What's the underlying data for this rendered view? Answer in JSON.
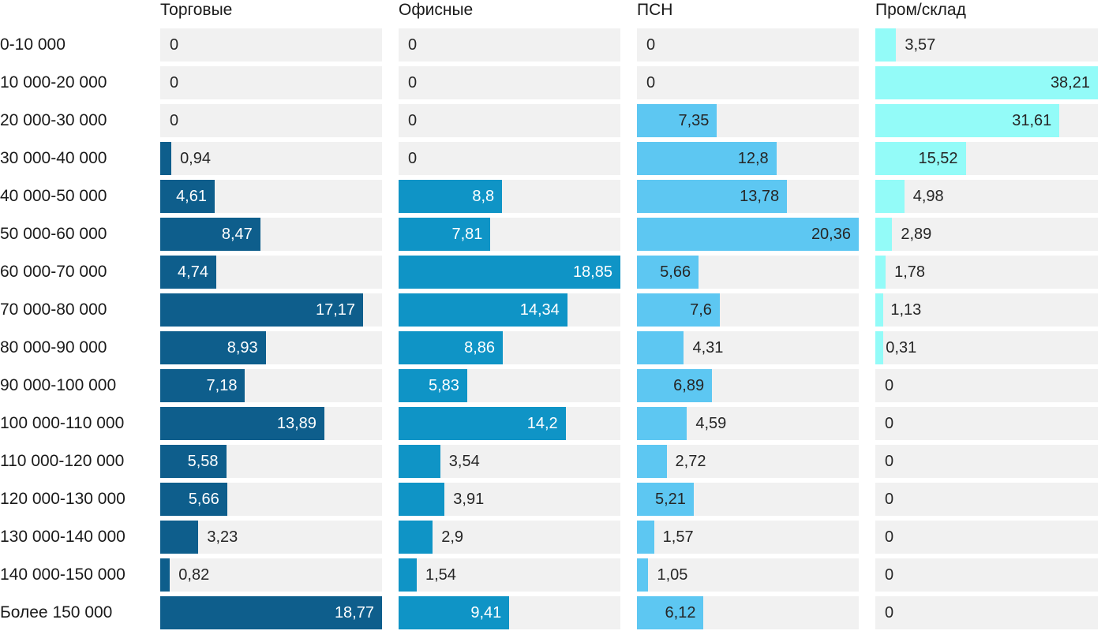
{
  "chart_data": {
    "type": "bar",
    "orientation": "horizontal",
    "scaling": "each series normalized to its own max value",
    "grid": false,
    "value_decimal_separator": ",",
    "track_color": "#f1f1f1",
    "label_text_color": "#1a1a1a",
    "outside_value_text_color": "#262626",
    "categories": [
      "0-10 000",
      "10 000-20 000",
      "20 000-30 000",
      "30 000-40 000",
      "40 000-50 000",
      "50 000-60 000",
      "60 000-70 000",
      "70 000-80 000",
      "80 000-90 000",
      "90 000-100 000",
      "100 000-110 000",
      "110 000-120 000",
      "120 000-130 000",
      "130 000-140 000",
      "140 000-150 000",
      "Более 150 000"
    ],
    "series": [
      {
        "name": "Торговые",
        "color": "#0e5e8c",
        "inside_text_color": "#ffffff",
        "values": [
          0,
          0,
          0,
          0.94,
          4.61,
          8.47,
          4.74,
          17.17,
          8.93,
          7.18,
          13.89,
          5.58,
          5.66,
          3.23,
          0.82,
          18.77
        ]
      },
      {
        "name": "Офисные",
        "color": "#0f94c6",
        "inside_text_color": "#ffffff",
        "values": [
          0,
          0,
          0,
          0,
          8.8,
          7.81,
          18.85,
          14.34,
          8.86,
          5.83,
          14.2,
          3.54,
          3.91,
          2.9,
          1.54,
          9.41
        ]
      },
      {
        "name": "ПСН",
        "color": "#5dc7f2",
        "inside_text_color": "#262626",
        "values": [
          0,
          0,
          7.35,
          12.8,
          13.78,
          20.36,
          5.66,
          7.6,
          4.31,
          6.89,
          4.59,
          2.72,
          5.21,
          1.57,
          1.05,
          6.12
        ]
      },
      {
        "name": "Пром/склад",
        "color": "#93fbf8",
        "inside_text_color": "#262626",
        "values": [
          3.57,
          38.21,
          31.61,
          15.52,
          4.98,
          2.89,
          1.78,
          1.13,
          0.31,
          0,
          0,
          0,
          0,
          0,
          0,
          0
        ]
      }
    ]
  }
}
